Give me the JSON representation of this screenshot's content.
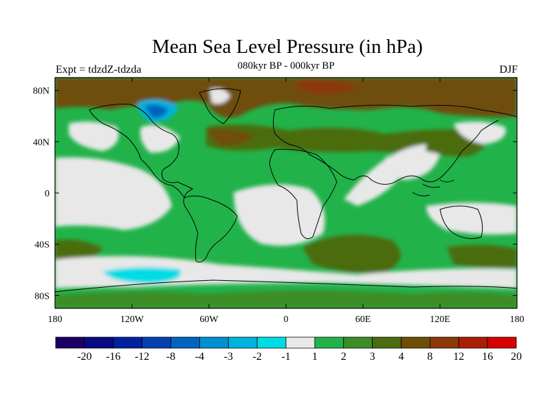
{
  "title": "Mean Sea Level Pressure (in hPa)",
  "subtitle": "080kyr BP - 000kyr BP",
  "left_label": "Expt = tdzdZ-tdzda",
  "right_label": "DJF",
  "map": {
    "lon_range": [
      -180,
      180
    ],
    "lat_range": [
      -90,
      90
    ],
    "x_ticks": [
      {
        "value": -180,
        "label": "180"
      },
      {
        "value": -120,
        "label": "120W"
      },
      {
        "value": -60,
        "label": "60W"
      },
      {
        "value": 0,
        "label": "0"
      },
      {
        "value": 60,
        "label": "60E"
      },
      {
        "value": 120,
        "label": "120E"
      },
      {
        "value": 180,
        "label": "180"
      }
    ],
    "y_ticks": [
      {
        "value": 80,
        "label": "80N"
      },
      {
        "value": 40,
        "label": "40N"
      },
      {
        "value": 0,
        "label": "0"
      },
      {
        "value": -40,
        "label": "40S"
      },
      {
        "value": -80,
        "label": "80S"
      }
    ]
  },
  "colorbar": {
    "colors": [
      "#1a0066",
      "#0a0a82",
      "#00229e",
      "#0041ad",
      "#0064c0",
      "#0090d0",
      "#00b3dd",
      "#00dce4",
      "#e8e8e8",
      "#22b24a",
      "#3c8d26",
      "#4b6c10",
      "#6e4e07",
      "#8c3809",
      "#aa1e05",
      "#d80000"
    ],
    "labels": [
      "-20",
      "-16",
      "-12",
      "-8",
      "-4",
      "-3",
      "-2",
      "-1",
      "1",
      "2",
      "3",
      "4",
      "8",
      "12",
      "16",
      "20"
    ]
  }
}
